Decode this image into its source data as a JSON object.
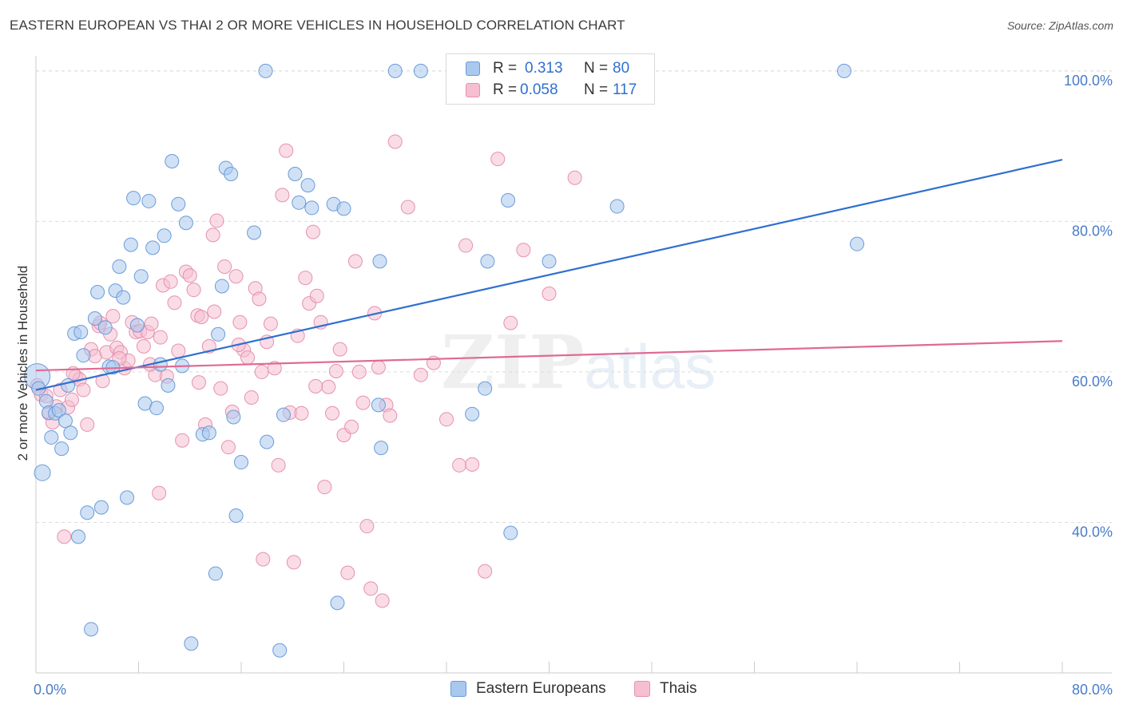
{
  "header": {
    "title": "EASTERN EUROPEAN VS THAI 2 OR MORE VEHICLES IN HOUSEHOLD CORRELATION CHART",
    "source": "Source: ZipAtlas.com"
  },
  "watermark": {
    "zip": "ZIP",
    "atlas": "atlas"
  },
  "legend": {
    "r_label": "R =",
    "n_label": "N =",
    "rows": [
      {
        "r": "0.313",
        "n": "80"
      },
      {
        "r": "0.058",
        "n": "117"
      }
    ]
  },
  "colors": {
    "blue_fill": "#a9c8ee",
    "blue_stroke": "#6b9bd8",
    "blue_line": "#2f6fd0",
    "pink_fill": "#f6bfd1",
    "pink_stroke": "#e592ad",
    "pink_line": "#e06a93",
    "tick_text": "#4a7cc7"
  },
  "chart_data": {
    "type": "scatter",
    "title": "EASTERN EUROPEAN VS THAI 2 OR MORE VEHICLES IN HOUSEHOLD CORRELATION CHART",
    "xlabel": "",
    "ylabel": "2 or more Vehicles in Household",
    "xlim": [
      0,
      80
    ],
    "ylim": [
      20,
      102
    ],
    "x_tick_labels": [
      "0.0%",
      "80.0%"
    ],
    "y_ticks": [
      40,
      60,
      80,
      100
    ],
    "y_tick_labels": [
      "40.0%",
      "60.0%",
      "80.0%",
      "100.0%"
    ],
    "series": [
      {
        "name": "Eastern Europeans",
        "r": 0.313,
        "n": 80,
        "trend": {
          "x": [
            0,
            80
          ],
          "y": [
            57.6,
            88.2
          ]
        },
        "points": [
          [
            0.1,
            59.4
          ],
          [
            0.2,
            57.8
          ],
          [
            0.5,
            46.6
          ],
          [
            0.8,
            56.1
          ],
          [
            1.0,
            54.6
          ],
          [
            1.2,
            51.3
          ],
          [
            1.5,
            54.5
          ],
          [
            1.8,
            54.9
          ],
          [
            2.0,
            49.8
          ],
          [
            2.3,
            53.5
          ],
          [
            2.5,
            58.2
          ],
          [
            2.7,
            51.9
          ],
          [
            3.0,
            65.1
          ],
          [
            3.3,
            38.1
          ],
          [
            3.5,
            65.3
          ],
          [
            3.7,
            62.2
          ],
          [
            4.0,
            41.3
          ],
          [
            4.3,
            25.8
          ],
          [
            4.6,
            67.1
          ],
          [
            4.8,
            70.6
          ],
          [
            5.1,
            42.0
          ],
          [
            5.4,
            65.9
          ],
          [
            5.7,
            60.7
          ],
          [
            6.0,
            60.6
          ],
          [
            6.2,
            70.8
          ],
          [
            6.5,
            74.0
          ],
          [
            6.8,
            69.9
          ],
          [
            7.1,
            43.3
          ],
          [
            7.4,
            76.9
          ],
          [
            7.6,
            83.1
          ],
          [
            7.9,
            66.2
          ],
          [
            8.2,
            72.7
          ],
          [
            8.5,
            55.8
          ],
          [
            8.8,
            82.7
          ],
          [
            9.1,
            76.5
          ],
          [
            9.4,
            55.2
          ],
          [
            9.7,
            61.0
          ],
          [
            10.0,
            78.1
          ],
          [
            10.3,
            58.2
          ],
          [
            10.6,
            88.0
          ],
          [
            11.1,
            82.3
          ],
          [
            11.4,
            60.8
          ],
          [
            11.7,
            79.8
          ],
          [
            12.1,
            23.9
          ],
          [
            13.0,
            51.7
          ],
          [
            13.5,
            51.9
          ],
          [
            14.0,
            33.2
          ],
          [
            14.2,
            65.0
          ],
          [
            14.5,
            71.4
          ],
          [
            14.8,
            87.1
          ],
          [
            15.2,
            86.3
          ],
          [
            15.4,
            54.0
          ],
          [
            15.6,
            40.9
          ],
          [
            16.0,
            48.0
          ],
          [
            17.0,
            78.5
          ],
          [
            18.0,
            50.7
          ],
          [
            19.0,
            23.0
          ],
          [
            19.3,
            54.3
          ],
          [
            20.2,
            86.3
          ],
          [
            20.5,
            82.5
          ],
          [
            21.2,
            84.8
          ],
          [
            21.5,
            81.8
          ],
          [
            23.2,
            82.3
          ],
          [
            23.5,
            29.3
          ],
          [
            24.0,
            81.7
          ],
          [
            26.7,
            55.6
          ],
          [
            26.8,
            74.7
          ],
          [
            26.9,
            49.9
          ],
          [
            28.0,
            100.0
          ],
          [
            30.0,
            100.0
          ],
          [
            34.0,
            54.4
          ],
          [
            35.0,
            57.8
          ],
          [
            35.2,
            74.7
          ],
          [
            36.8,
            82.8
          ],
          [
            37.0,
            38.6
          ],
          [
            40.0,
            74.7
          ],
          [
            45.3,
            82.0
          ],
          [
            63.0,
            100.0
          ],
          [
            64.0,
            77.0
          ],
          [
            17.9,
            100.0
          ]
        ]
      },
      {
        "name": "Thais",
        "r": 0.058,
        "n": 117,
        "trend": {
          "x": [
            0,
            80
          ],
          "y": [
            60.2,
            64.1
          ]
        },
        "points": [
          [
            0.1,
            58.2
          ],
          [
            0.4,
            57.0
          ],
          [
            0.8,
            56.8
          ],
          [
            1.0,
            54.5
          ],
          [
            1.3,
            53.3
          ],
          [
            1.6,
            55.4
          ],
          [
            1.9,
            57.6
          ],
          [
            2.2,
            38.1
          ],
          [
            2.5,
            55.3
          ],
          [
            2.8,
            56.3
          ],
          [
            3.1,
            59.4
          ],
          [
            3.4,
            59.0
          ],
          [
            3.7,
            57.6
          ],
          [
            4.0,
            53.0
          ],
          [
            4.3,
            63.0
          ],
          [
            4.6,
            62.1
          ],
          [
            4.9,
            66.1
          ],
          [
            5.2,
            58.8
          ],
          [
            5.5,
            62.6
          ],
          [
            5.8,
            65.0
          ],
          [
            6.0,
            67.4
          ],
          [
            6.3,
            63.2
          ],
          [
            6.6,
            62.6
          ],
          [
            6.9,
            60.5
          ],
          [
            7.2,
            61.5
          ],
          [
            7.5,
            66.6
          ],
          [
            7.8,
            65.3
          ],
          [
            8.1,
            65.4
          ],
          [
            8.4,
            63.4
          ],
          [
            8.7,
            65.3
          ],
          [
            9.0,
            66.4
          ],
          [
            9.3,
            59.6
          ],
          [
            9.6,
            43.9
          ],
          [
            9.9,
            71.5
          ],
          [
            10.2,
            59.4
          ],
          [
            10.5,
            72.0
          ],
          [
            10.8,
            69.2
          ],
          [
            11.1,
            62.8
          ],
          [
            11.4,
            50.9
          ],
          [
            11.7,
            73.3
          ],
          [
            12.0,
            72.8
          ],
          [
            12.3,
            70.9
          ],
          [
            12.6,
            67.5
          ],
          [
            12.9,
            67.3
          ],
          [
            13.2,
            53.0
          ],
          [
            13.5,
            63.4
          ],
          [
            13.8,
            78.2
          ],
          [
            14.1,
            80.1
          ],
          [
            14.4,
            57.8
          ],
          [
            14.7,
            74.0
          ],
          [
            15.0,
            50.0
          ],
          [
            15.3,
            54.7
          ],
          [
            15.6,
            72.7
          ],
          [
            15.9,
            66.6
          ],
          [
            16.2,
            62.9
          ],
          [
            16.5,
            61.9
          ],
          [
            16.8,
            56.6
          ],
          [
            17.1,
            71.1
          ],
          [
            17.4,
            69.7
          ],
          [
            17.7,
            35.1
          ],
          [
            18.0,
            64.0
          ],
          [
            18.3,
            66.4
          ],
          [
            18.6,
            60.5
          ],
          [
            18.9,
            47.6
          ],
          [
            19.2,
            83.5
          ],
          [
            19.5,
            89.4
          ],
          [
            19.8,
            54.6
          ],
          [
            20.1,
            34.7
          ],
          [
            20.4,
            64.8
          ],
          [
            20.7,
            54.5
          ],
          [
            21.0,
            72.5
          ],
          [
            21.3,
            69.1
          ],
          [
            21.6,
            78.6
          ],
          [
            21.9,
            70.1
          ],
          [
            22.2,
            66.6
          ],
          [
            22.5,
            44.7
          ],
          [
            22.8,
            58.0
          ],
          [
            23.1,
            54.5
          ],
          [
            23.4,
            60.1
          ],
          [
            23.7,
            63.0
          ],
          [
            24.0,
            51.6
          ],
          [
            24.3,
            33.3
          ],
          [
            24.6,
            52.7
          ],
          [
            24.9,
            74.7
          ],
          [
            25.2,
            60.0
          ],
          [
            25.5,
            55.9
          ],
          [
            25.8,
            39.5
          ],
          [
            26.1,
            31.2
          ],
          [
            26.4,
            67.8
          ],
          [
            26.7,
            60.6
          ],
          [
            27.0,
            29.6
          ],
          [
            27.3,
            55.6
          ],
          [
            27.6,
            54.2
          ],
          [
            28.0,
            90.6
          ],
          [
            29.0,
            81.9
          ],
          [
            30.0,
            59.6
          ],
          [
            31.0,
            61.2
          ],
          [
            32.0,
            53.7
          ],
          [
            33.0,
            47.6
          ],
          [
            33.5,
            76.8
          ],
          [
            34.0,
            47.7
          ],
          [
            35.0,
            33.5
          ],
          [
            36.0,
            88.3
          ],
          [
            37.0,
            66.5
          ],
          [
            38.0,
            76.2
          ],
          [
            40.0,
            70.4
          ],
          [
            42.0,
            85.8
          ],
          [
            5.0,
            66.5
          ],
          [
            9.7,
            64.6
          ],
          [
            13.9,
            68.0
          ],
          [
            8.9,
            61.0
          ],
          [
            2.9,
            59.8
          ],
          [
            12.7,
            58.6
          ],
          [
            17.6,
            60.0
          ],
          [
            21.8,
            58.1
          ],
          [
            15.8,
            63.6
          ],
          [
            6.5,
            61.8
          ]
        ]
      }
    ]
  },
  "bottom_legend": [
    {
      "label": "Eastern Europeans"
    },
    {
      "label": "Thais"
    }
  ]
}
